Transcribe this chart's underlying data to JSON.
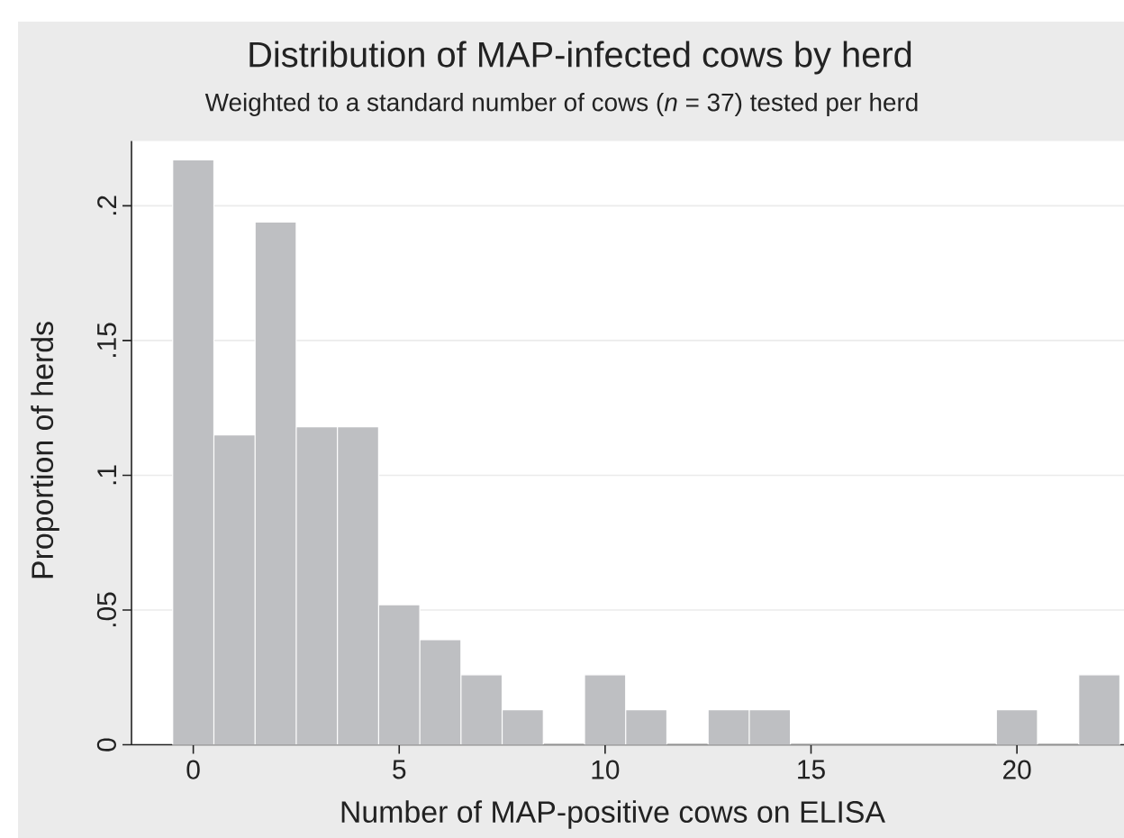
{
  "chart_data": {
    "type": "histogram",
    "title": "Distribution of MAP-infected cows by herd",
    "subtitle": "Weighted to a standard number of cows (*n* = 37) tested per herd",
    "xlabel": "Number of MAP-positive cows on ELISA",
    "ylabel": "Proportion of herds",
    "bins": [
      -0.5,
      0.5,
      1.5,
      2.5,
      3.5,
      4.5,
      5.5,
      6.5,
      7.5,
      8.5,
      9.5,
      10.5,
      11.5,
      12.5,
      13.5,
      14.5,
      15.5,
      16.5,
      17.5,
      18.5,
      19.5,
      20.5,
      21.5,
      22.5
    ],
    "values": [
      0.217,
      0.115,
      0.194,
      0.118,
      0.118,
      0.052,
      0.039,
      0.026,
      0.013,
      0,
      0.026,
      0.013,
      0,
      0.013,
      0.013,
      0,
      0,
      0,
      0,
      0,
      0.013,
      0,
      0.026
    ],
    "color": "#bebfc2",
    "xlim": [
      -1.5,
      22.6
    ],
    "ylim": [
      0,
      0.224
    ],
    "xticks": [
      0,
      5,
      10,
      15,
      20
    ],
    "yticks": [
      {
        "value": 0,
        "label": "0"
      },
      {
        "value": 0.05,
        "label": ".05"
      },
      {
        "value": 0.1,
        "label": ".1"
      },
      {
        "value": 0.15,
        "label": ".15"
      },
      {
        "value": 0.2,
        "label": ".2"
      }
    ],
    "grid": "y"
  }
}
